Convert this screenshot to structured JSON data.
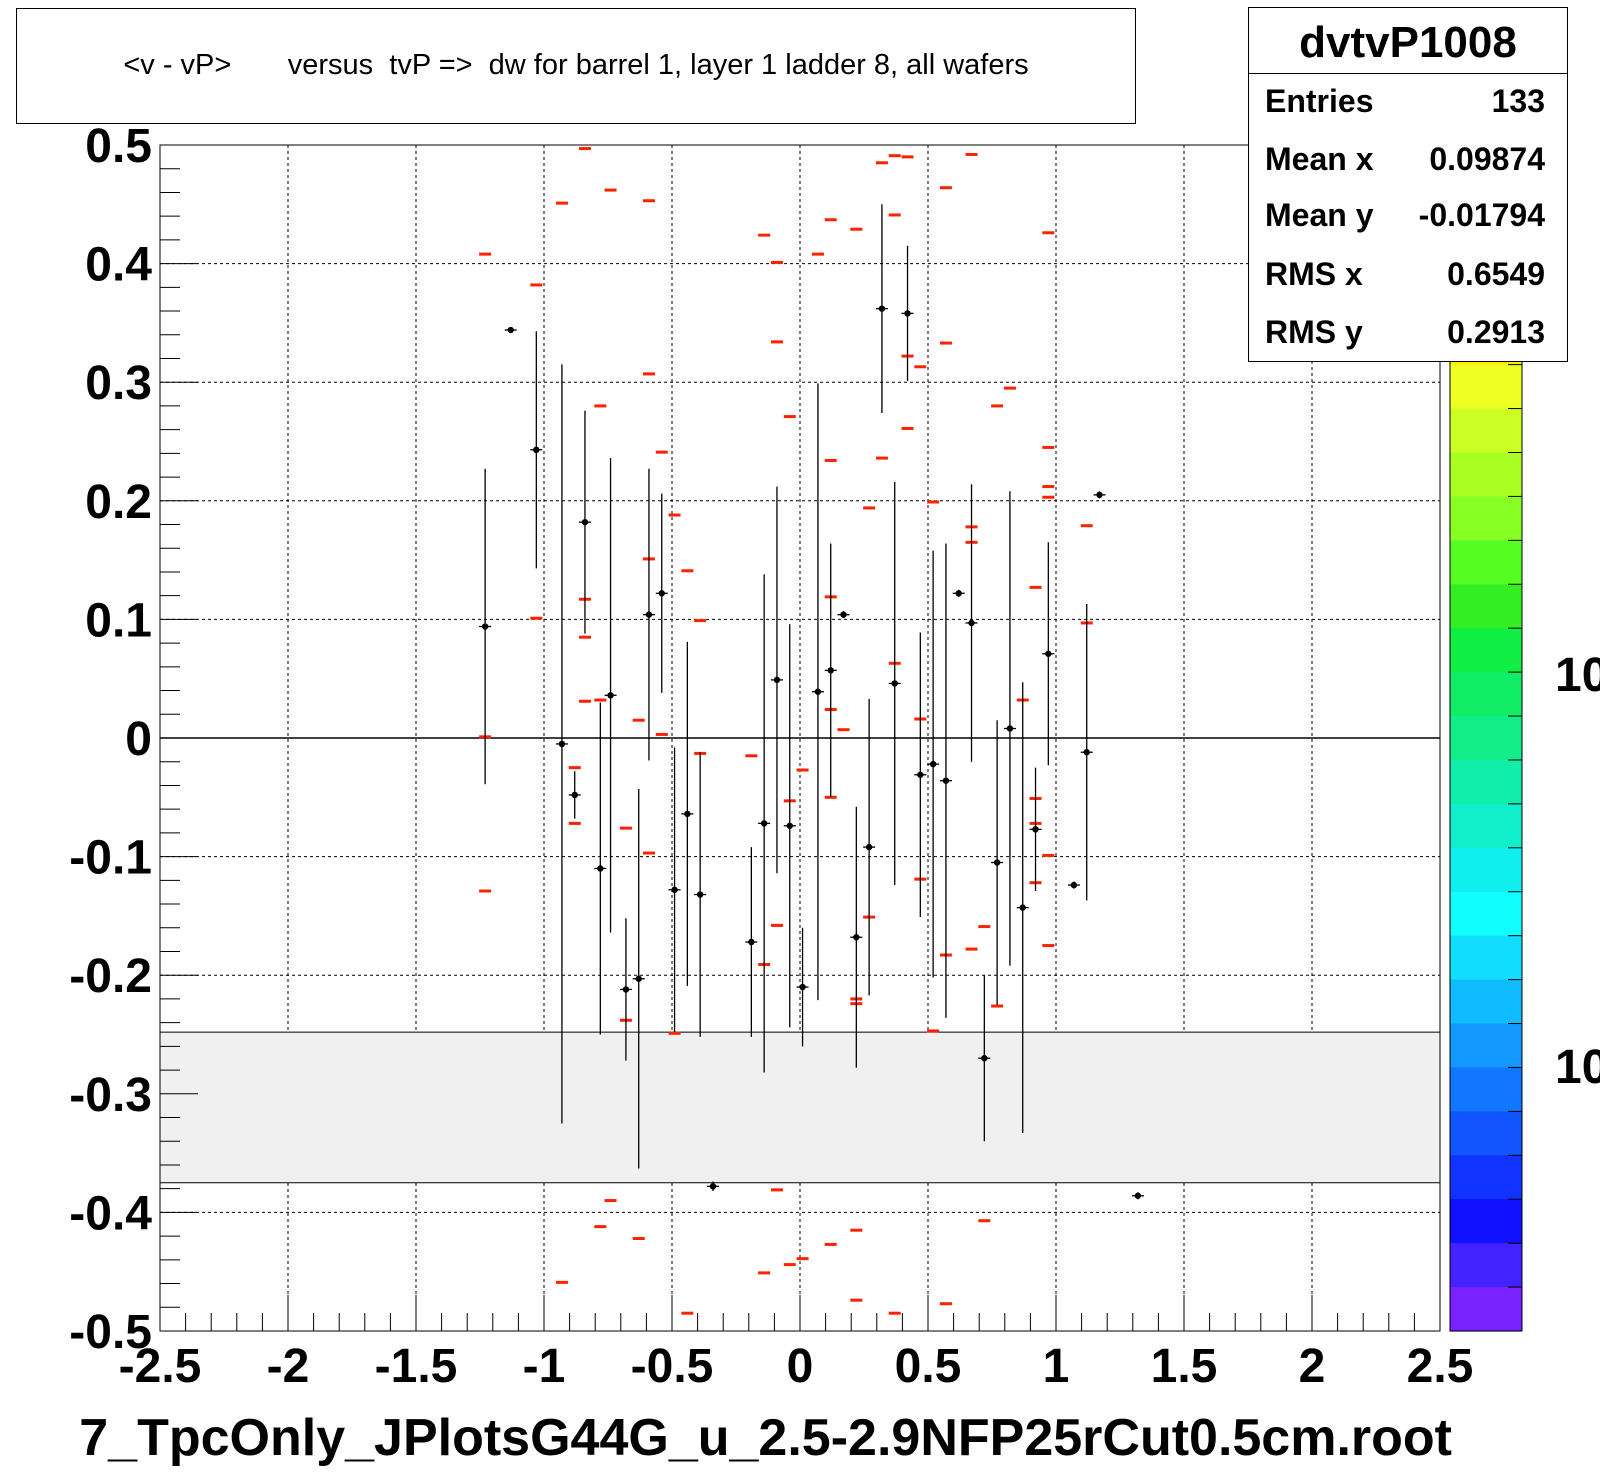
{
  "title": "<v - vP>       versus  tvP =>  dw for barrel 1, layer 1 ladder 8, all wafers",
  "stats": {
    "name": "dvtvP1008",
    "rows": [
      {
        "key": "Entries",
        "value": "133"
      },
      {
        "key": "Mean x",
        "value": "0.09874"
      },
      {
        "key": "Mean y",
        "value": "-0.01794"
      },
      {
        "key": "RMS x",
        "value": "0.6549"
      },
      {
        "key": "RMS y",
        "value": "0.2913"
      }
    ]
  },
  "footer": "7_TpcOnly_JPlotsG44G_u_2.5-2.9NFP25rCut0.5cm.root",
  "palette": {
    "labels": [
      "10",
      "10"
    ],
    "colors": [
      "#ff9900",
      "#ffee00",
      "#eeff22",
      "#ccff22",
      "#aaff22",
      "#88ff22",
      "#55ff22",
      "#33ee22",
      "#11ee44",
      "#11ee66",
      "#11ee88",
      "#11eeaa",
      "#11eecc",
      "#11eeee",
      "#11ffff",
      "#11ddff",
      "#11bbff",
      "#1199ff",
      "#1177ff",
      "#1155ff",
      "#1133ff",
      "#1111ff",
      "#4422ff",
      "#7722ff"
    ]
  },
  "chart_data": {
    "type": "scatter",
    "xlim": [
      -2.5,
      2.5
    ],
    "ylim": [
      -0.5,
      0.5
    ],
    "x_ticks": [
      "-2.5",
      "-2",
      "-1.5",
      "-1",
      "-0.5",
      "0",
      "0.5",
      "1",
      "1.5",
      "2",
      "2.5"
    ],
    "y_ticks": [
      "-0.5",
      "-0.4",
      "-0.3",
      "-0.2",
      "-0.1",
      "0",
      "0.1",
      "0.2",
      "0.3",
      "0.4",
      "0.5"
    ],
    "grid": true,
    "band": {
      "ymin": -0.375,
      "ymax": -0.248
    },
    "profile": [
      {
        "x": -1.23,
        "y": 0.094,
        "err": 0.133
      },
      {
        "x": -1.13,
        "y": 0.344,
        "err": 0.002
      },
      {
        "x": -1.03,
        "y": 0.243,
        "err": 0.1
      },
      {
        "x": -0.93,
        "y": -0.005,
        "err": 0.32
      },
      {
        "x": -0.88,
        "y": -0.048,
        "err": 0.02
      },
      {
        "x": -0.84,
        "y": 0.182,
        "err": 0.094
      },
      {
        "x": -0.78,
        "y": -0.11,
        "err": 0.14
      },
      {
        "x": -0.74,
        "y": 0.036,
        "err": 0.2
      },
      {
        "x": -0.68,
        "y": -0.212,
        "err": 0.06
      },
      {
        "x": -0.63,
        "y": -0.203,
        "err": 0.16
      },
      {
        "x": -0.59,
        "y": 0.104,
        "err": 0.123
      },
      {
        "x": -0.54,
        "y": 0.122,
        "err": 0.084
      },
      {
        "x": -0.49,
        "y": -0.128,
        "err": 0.12
      },
      {
        "x": -0.44,
        "y": -0.064,
        "err": 0.145
      },
      {
        "x": -0.39,
        "y": -0.132,
        "err": 0.12
      },
      {
        "x": -0.34,
        "y": -0.378,
        "err": 0.004
      },
      {
        "x": -0.19,
        "y": -0.172,
        "err": 0.08
      },
      {
        "x": -0.14,
        "y": -0.072,
        "err": 0.21
      },
      {
        "x": -0.09,
        "y": 0.049,
        "err": 0.163
      },
      {
        "x": -0.04,
        "y": -0.074,
        "err": 0.17
      },
      {
        "x": 0.01,
        "y": -0.21,
        "err": 0.05
      },
      {
        "x": 0.07,
        "y": 0.039,
        "err": 0.26
      },
      {
        "x": 0.12,
        "y": 0.057,
        "err": 0.107
      },
      {
        "x": 0.17,
        "y": 0.104,
        "err": 0.003
      },
      {
        "x": 0.22,
        "y": -0.168,
        "err": 0.11
      },
      {
        "x": 0.27,
        "y": -0.092,
        "err": 0.125
      },
      {
        "x": 0.32,
        "y": 0.362,
        "err": 0.088
      },
      {
        "x": 0.37,
        "y": 0.046,
        "err": 0.17
      },
      {
        "x": 0.42,
        "y": 0.358,
        "err": 0.057
      },
      {
        "x": 0.47,
        "y": -0.031,
        "err": 0.12
      },
      {
        "x": 0.52,
        "y": -0.022,
        "err": 0.18
      },
      {
        "x": 0.57,
        "y": -0.036,
        "err": 0.2
      },
      {
        "x": 0.62,
        "y": 0.122,
        "err": 0.003
      },
      {
        "x": 0.67,
        "y": 0.097,
        "err": 0.117
      },
      {
        "x": 0.72,
        "y": -0.27,
        "err": 0.07
      },
      {
        "x": 0.77,
        "y": -0.105,
        "err": 0.12
      },
      {
        "x": 0.82,
        "y": 0.008,
        "err": 0.2
      },
      {
        "x": 0.87,
        "y": -0.143,
        "err": 0.19
      },
      {
        "x": 0.92,
        "y": -0.077,
        "err": 0.052
      },
      {
        "x": 0.97,
        "y": 0.071,
        "err": 0.094
      },
      {
        "x": 1.07,
        "y": -0.124,
        "err": 0.003
      },
      {
        "x": 1.12,
        "y": -0.012,
        "err": 0.125
      },
      {
        "x": 1.17,
        "y": 0.205,
        "err": 0.003
      },
      {
        "x": 1.32,
        "y": -0.386,
        "err": 0.003
      }
    ],
    "points": [
      [
        -1.23,
        0.408
      ],
      [
        -1.23,
        0.001
      ],
      [
        -1.23,
        -0.129
      ],
      [
        -1.03,
        0.382
      ],
      [
        -1.03,
        0.101
      ],
      [
        -0.93,
        0.451
      ],
      [
        -0.93,
        -0.459
      ],
      [
        -0.88,
        -0.025
      ],
      [
        -0.88,
        -0.072
      ],
      [
        -0.84,
        0.497
      ],
      [
        -0.84,
        0.117
      ],
      [
        -0.84,
        0.085
      ],
      [
        -0.84,
        0.031
      ],
      [
        -0.78,
        0.28
      ],
      [
        -0.78,
        0.032
      ],
      [
        -0.78,
        -0.412
      ],
      [
        -0.74,
        0.462
      ],
      [
        -0.74,
        -0.39
      ],
      [
        -0.68,
        -0.076
      ],
      [
        -0.68,
        -0.238
      ],
      [
        -0.63,
        0.015
      ],
      [
        -0.63,
        -0.422
      ],
      [
        -0.59,
        0.453
      ],
      [
        -0.59,
        0.307
      ],
      [
        -0.59,
        0.151
      ],
      [
        -0.59,
        -0.097
      ],
      [
        -0.54,
        0.241
      ],
      [
        -0.54,
        0.003
      ],
      [
        -0.49,
        0.188
      ],
      [
        -0.49,
        -0.249
      ],
      [
        -0.44,
        0.141
      ],
      [
        -0.44,
        -0.485
      ],
      [
        -0.39,
        0.099
      ],
      [
        -0.39,
        -0.013
      ],
      [
        -0.19,
        -0.015
      ],
      [
        -0.14,
        0.424
      ],
      [
        -0.14,
        -0.191
      ],
      [
        -0.14,
        -0.451
      ],
      [
        -0.09,
        0.401
      ],
      [
        -0.09,
        0.334
      ],
      [
        -0.09,
        -0.158
      ],
      [
        -0.09,
        -0.381
      ],
      [
        -0.04,
        0.271
      ],
      [
        -0.04,
        -0.053
      ],
      [
        -0.04,
        -0.444
      ],
      [
        0.01,
        -0.027
      ],
      [
        0.01,
        -0.439
      ],
      [
        0.07,
        0.408
      ],
      [
        0.12,
        0.437
      ],
      [
        0.12,
        0.234
      ],
      [
        0.12,
        0.119
      ],
      [
        0.12,
        0.024
      ],
      [
        0.12,
        -0.05
      ],
      [
        0.12,
        -0.427
      ],
      [
        0.17,
        0.007
      ],
      [
        0.22,
        0.429
      ],
      [
        0.22,
        -0.22
      ],
      [
        0.22,
        -0.224
      ],
      [
        0.22,
        -0.415
      ],
      [
        0.22,
        -0.474
      ],
      [
        0.27,
        0.194
      ],
      [
        0.27,
        -0.151
      ],
      [
        0.32,
        0.485
      ],
      [
        0.32,
        0.236
      ],
      [
        0.37,
        0.491
      ],
      [
        0.37,
        0.441
      ],
      [
        0.37,
        0.063
      ],
      [
        0.37,
        -0.485
      ],
      [
        0.42,
        0.49
      ],
      [
        0.42,
        0.322
      ],
      [
        0.42,
        0.261
      ],
      [
        0.47,
        0.313
      ],
      [
        0.47,
        0.016
      ],
      [
        0.47,
        -0.119
      ],
      [
        0.52,
        0.199
      ],
      [
        0.52,
        -0.247
      ],
      [
        0.57,
        0.464
      ],
      [
        0.57,
        0.333
      ],
      [
        0.57,
        -0.183
      ],
      [
        0.57,
        -0.477
      ],
      [
        0.67,
        0.492
      ],
      [
        0.67,
        0.178
      ],
      [
        0.67,
        0.165
      ],
      [
        0.67,
        -0.178
      ],
      [
        0.72,
        -0.159
      ],
      [
        0.72,
        -0.407
      ],
      [
        0.77,
        0.28
      ],
      [
        0.77,
        -0.226
      ],
      [
        0.82,
        0.295
      ],
      [
        0.87,
        0.032
      ],
      [
        0.92,
        0.127
      ],
      [
        0.92,
        -0.051
      ],
      [
        0.92,
        -0.072
      ],
      [
        0.92,
        -0.122
      ],
      [
        0.97,
        0.426
      ],
      [
        0.97,
        0.245
      ],
      [
        0.97,
        0.212
      ],
      [
        0.97,
        0.203
      ],
      [
        0.97,
        -0.099
      ],
      [
        0.97,
        -0.175
      ],
      [
        1.12,
        0.179
      ],
      [
        1.12,
        0.097
      ]
    ]
  }
}
